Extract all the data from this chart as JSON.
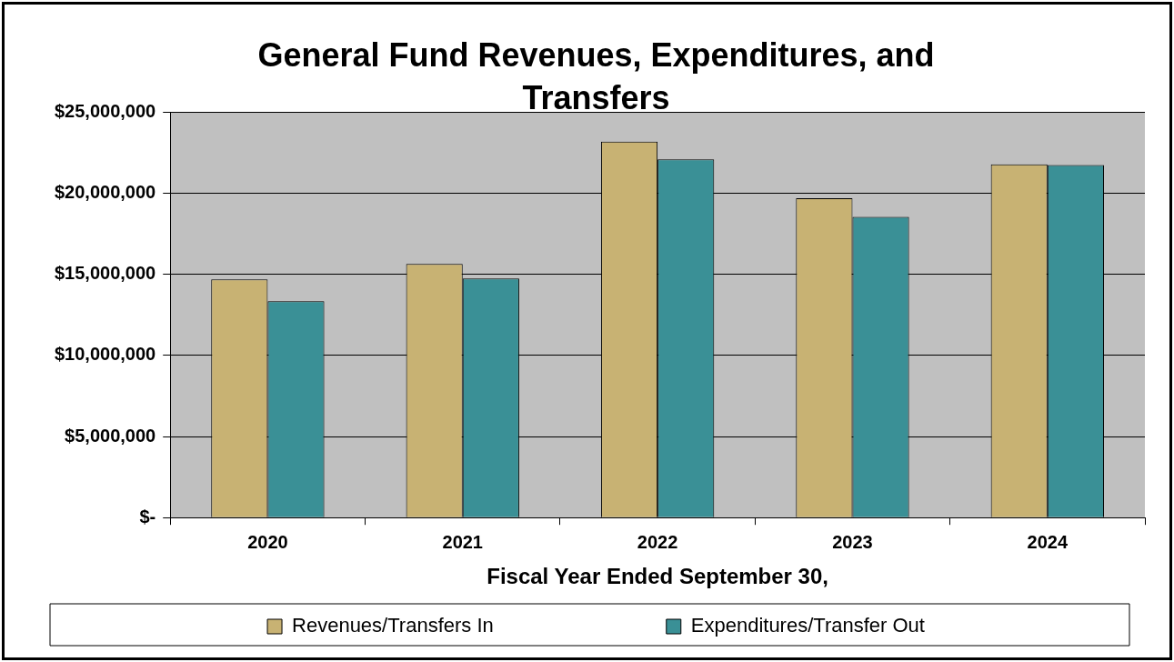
{
  "chart_data": {
    "type": "bar",
    "title": "General Fund Revenues, Expenditures, and Transfers",
    "xlabel": "Fiscal Year Ended September 30,",
    "categories": [
      "2020",
      "2021",
      "2022",
      "2023",
      "2024"
    ],
    "series": [
      {
        "name": "Revenues/Transfers In",
        "color": "#c8b273",
        "values": [
          14700000,
          15650000,
          23200000,
          19700000,
          21800000
        ]
      },
      {
        "name": "Expenditures/Transfer Out",
        "color": "#3a9096",
        "values": [
          13350000,
          14750000,
          22100000,
          18550000,
          21750000
        ]
      }
    ],
    "ylim": [
      0,
      25000000
    ],
    "yticks": [
      {
        "value": 0,
        "label": "$-"
      },
      {
        "value": 5000000,
        "label": "$5,000,000"
      },
      {
        "value": 10000000,
        "label": "$10,000,000"
      },
      {
        "value": 15000000,
        "label": "$15,000,000"
      },
      {
        "value": 20000000,
        "label": "$20,000,000"
      },
      {
        "value": 25000000,
        "label": "$25,000,000"
      }
    ],
    "grid": "y",
    "legend": "bottom"
  }
}
